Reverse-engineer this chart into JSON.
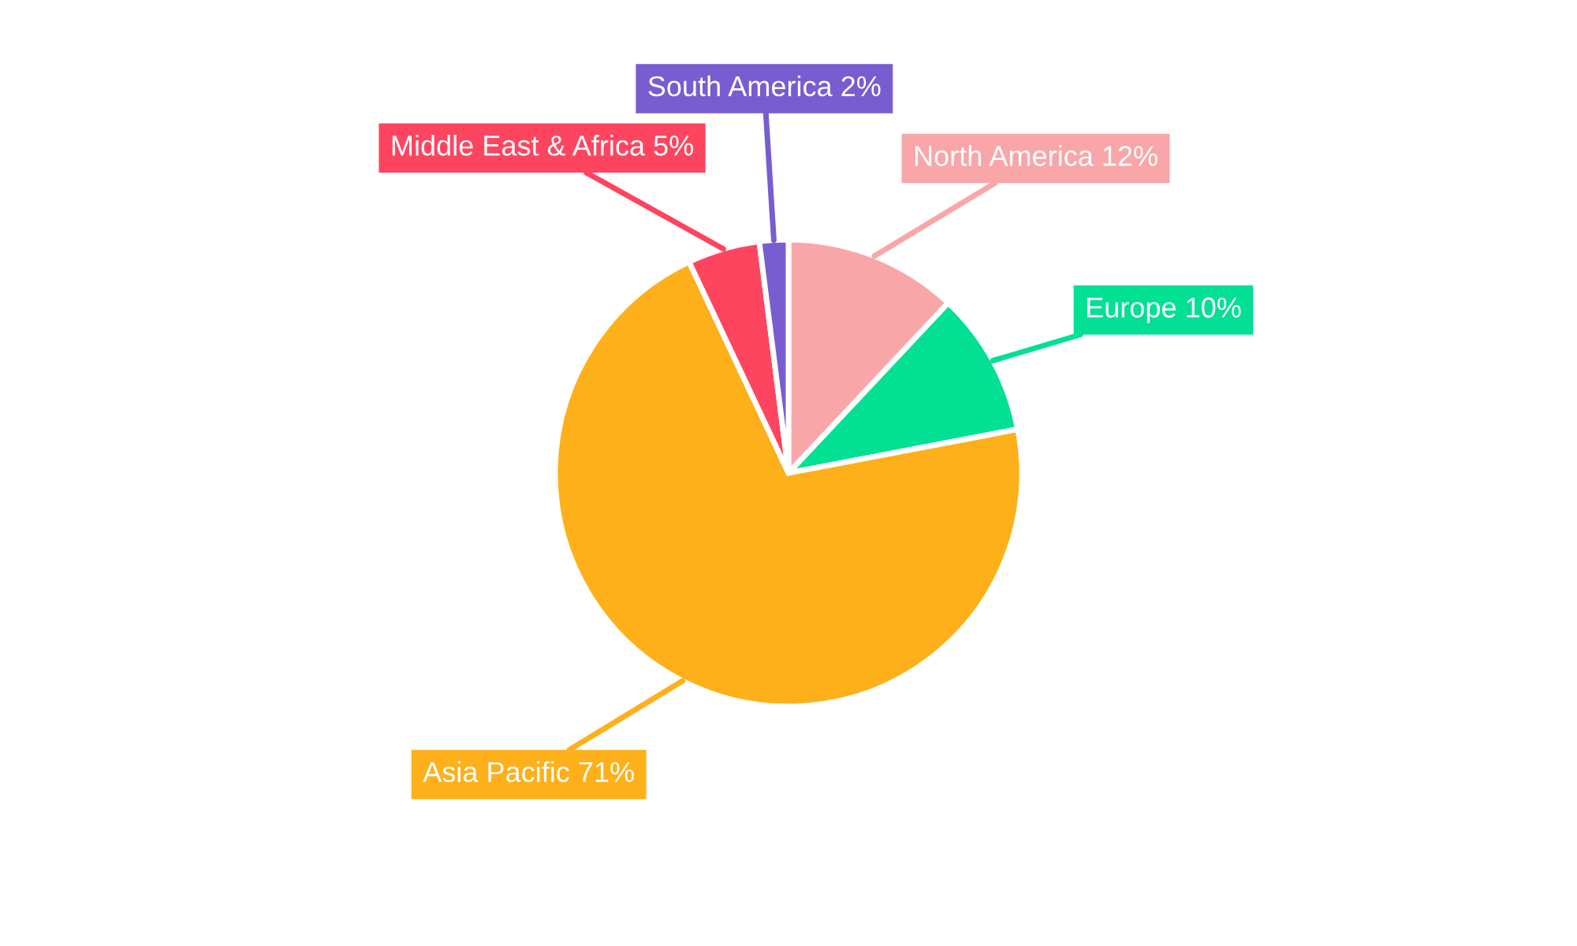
{
  "chart_data": {
    "type": "pie",
    "categories": [
      "North America",
      "Europe",
      "Asia Pacific",
      "Middle East & Africa",
      "South America"
    ],
    "values": [
      12,
      10,
      71,
      5,
      2
    ],
    "value_labels": [
      "12%",
      "10%",
      "71%",
      "5%",
      "2%"
    ],
    "colors": [
      "#f9a6a8",
      "#02e094",
      "#fdb01a",
      "#fe4560",
      "#785dd0"
    ]
  }
}
